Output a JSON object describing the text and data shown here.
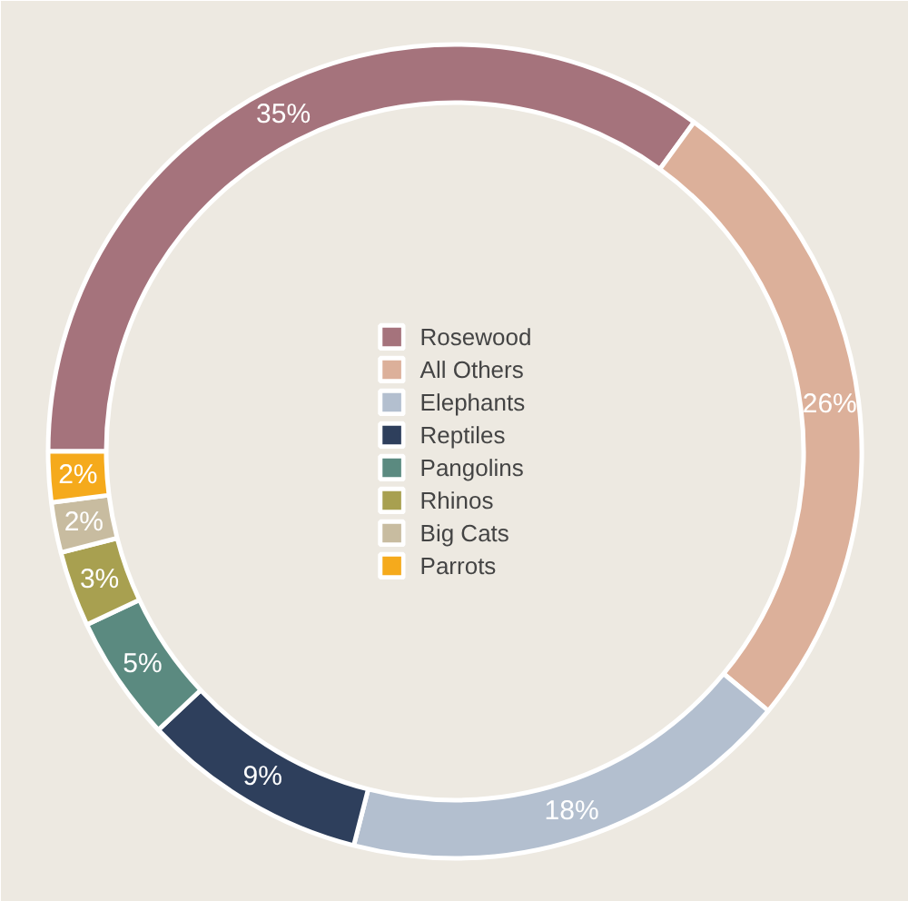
{
  "chart_data": {
    "type": "donut",
    "categories": [
      "Rosewood",
      "All Others",
      "Elephants",
      "Reptiles",
      "Pangolins",
      "Rhinos",
      "Big Cats",
      "Parrots"
    ],
    "values": [
      35,
      26,
      18,
      9,
      5,
      3,
      2,
      2
    ],
    "value_labels": [
      "35%",
      "26%",
      "18%",
      "9%",
      "5%",
      "3%",
      "2%",
      "2%"
    ],
    "colors": [
      "#a5737c",
      "#dcb09a",
      "#b3bfcf",
      "#2e3f5c",
      "#5b8a80",
      "#a8a050",
      "#c8bca0",
      "#f5aa1c"
    ],
    "legend": "center"
  }
}
